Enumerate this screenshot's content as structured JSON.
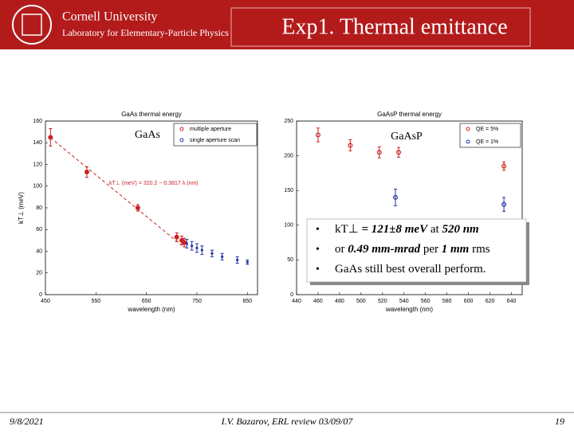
{
  "header": {
    "university": "Cornell University",
    "lab": "Laboratory for Elementary-Particle Physics",
    "title": "Exp1. Thermal emittance"
  },
  "chart_data": [
    {
      "type": "scatter",
      "title": "GaAs thermal energy",
      "label": "GaAs",
      "x_label": "wavelength (nm)",
      "y_label": "kT⊥ (meV)",
      "xlim": [
        450,
        870
      ],
      "xticks": [
        450,
        550,
        650,
        750,
        850
      ],
      "ylim": [
        0,
        160
      ],
      "yticks": [
        0,
        20,
        40,
        60,
        80,
        100,
        120,
        140,
        160
      ],
      "annotation": "kT⊥ (meV) = 320.2 − 0.3817 λ (nm)",
      "fit": {
        "intercept": 320.2,
        "slope": -0.3817,
        "x": [
          460,
          720
        ],
        "color": "#cc2222"
      },
      "series": [
        {
          "name": "multiple aperture",
          "color": "#cc2222",
          "marker": "circle",
          "x": [
            460,
            532,
            633,
            710,
            720,
            725
          ],
          "values": [
            145,
            113,
            80,
            53,
            50,
            48
          ],
          "errors": [
            8,
            5,
            3,
            4,
            4,
            4
          ]
        },
        {
          "name": "single aperture scan",
          "color": "#2233aa",
          "marker": "dot",
          "x": [
            730,
            740,
            750,
            760,
            780,
            800,
            830,
            850
          ],
          "values": [
            47,
            45,
            43,
            41,
            38,
            35,
            32,
            30
          ],
          "errors": [
            4,
            4,
            4,
            4,
            3,
            3,
            3,
            2
          ]
        }
      ]
    },
    {
      "type": "scatter",
      "title": "GaAsP thermal energy",
      "label": "GaAsP",
      "x_label": "wavelength (nm)",
      "xlim": [
        440,
        650
      ],
      "xticks": [
        440,
        460,
        480,
        500,
        520,
        540,
        560,
        580,
        600,
        620,
        640
      ],
      "ylim": [
        0,
        250
      ],
      "yticks": [
        0,
        50,
        100,
        150,
        200,
        250
      ],
      "series": [
        {
          "name": "QE = 5%",
          "color": "#cc2222",
          "marker": "circle",
          "x": [
            460,
            490,
            517,
            535,
            633
          ],
          "values": [
            230,
            215,
            205,
            205,
            185
          ],
          "errors": [
            10,
            8,
            8,
            7,
            6
          ]
        },
        {
          "name": "QE = 1%",
          "color": "#2233aa",
          "marker": "circle",
          "x": [
            532,
            633
          ],
          "values": [
            140,
            130
          ],
          "errors": [
            12,
            10
          ]
        }
      ]
    }
  ],
  "callout": {
    "bullets": [
      [
        {
          "text": "kT⊥ ",
          "style": "normal"
        },
        {
          "text": "= 121±8 meV",
          "style": "bold-italic"
        },
        {
          "text": " at ",
          "style": "normal"
        },
        {
          "text": "520 nm",
          "style": "bold-italic"
        }
      ],
      [
        {
          "text": "or ",
          "style": "normal"
        },
        {
          "text": "0.49 mm-mrad",
          "style": "bold-italic"
        },
        {
          "text": " per ",
          "style": "normal"
        },
        {
          "text": "1 mm",
          "style": "bold-italic"
        },
        {
          "text": " rms",
          "style": "normal"
        }
      ],
      [
        {
          "text": "GaAs still best overall perform.",
          "style": "normal"
        }
      ]
    ]
  },
  "footer": {
    "date": "9/8/2021",
    "center": "I.V. Bazarov, ERL review 03/09/07",
    "page": "19"
  }
}
